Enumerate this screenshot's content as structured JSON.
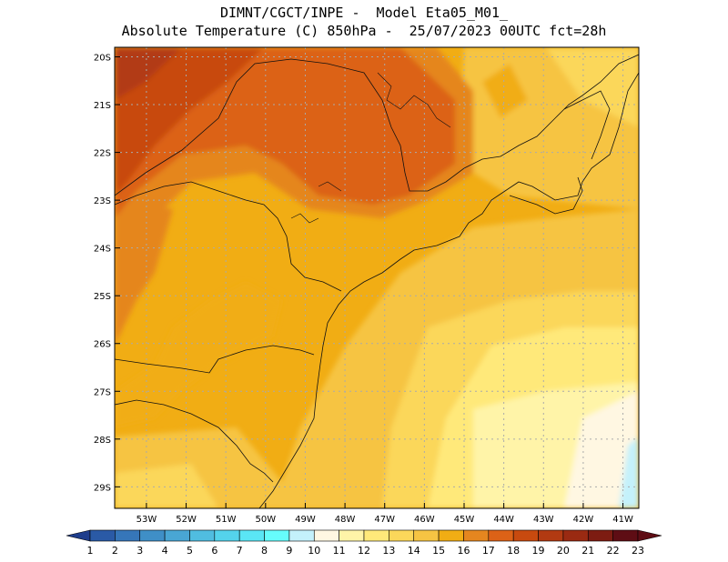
{
  "header": {
    "line1": "DIMNT/CGCT/INPE -  Model Eta05_M01_",
    "line2": "Absolute Temperature (C) 850hPa -  25/07/2023 00UTC fct=28h"
  },
  "map": {
    "lon_range": [
      -53.8,
      -40.6
    ],
    "lat_range": [
      -29.45,
      -19.8
    ],
    "lat_ticks": [
      "20S",
      "21S",
      "22S",
      "23S",
      "24S",
      "25S",
      "26S",
      "27S",
      "28S",
      "29S"
    ],
    "lon_ticks": [
      "53W",
      "52W",
      "51W",
      "50W",
      "49W",
      "48W",
      "47W",
      "46W",
      "45W",
      "44W",
      "43W",
      "42W",
      "41W"
    ],
    "gridlines": "dotted",
    "field": "temperature at 850hPa",
    "warmest_region": "northwest (upper 19-20C)",
    "coolest_region": "southeast ocean (10-11C)"
  },
  "colorbar": {
    "labels": [
      "1",
      "2",
      "3",
      "4",
      "5",
      "6",
      "7",
      "8",
      "9",
      "10",
      "11",
      "12",
      "13",
      "14",
      "15",
      "16",
      "17",
      "18",
      "19",
      "20",
      "21",
      "22",
      "23"
    ],
    "colors": [
      "#1e3d8c",
      "#2a5aa6",
      "#3676b9",
      "#3f8fc7",
      "#49a6d4",
      "#50bde0",
      "#54d3ec",
      "#5ae6f5",
      "#66fcfc",
      "#c4f1fb",
      "#fff7e2",
      "#fff4a8",
      "#ffe97a",
      "#fbd75a",
      "#f6c443",
      "#f1ad14",
      "#e5861f",
      "#dc6217",
      "#c84a0f",
      "#b23a12",
      "#9a2a12",
      "#7d1c12",
      "#5e0d14"
    ]
  }
}
